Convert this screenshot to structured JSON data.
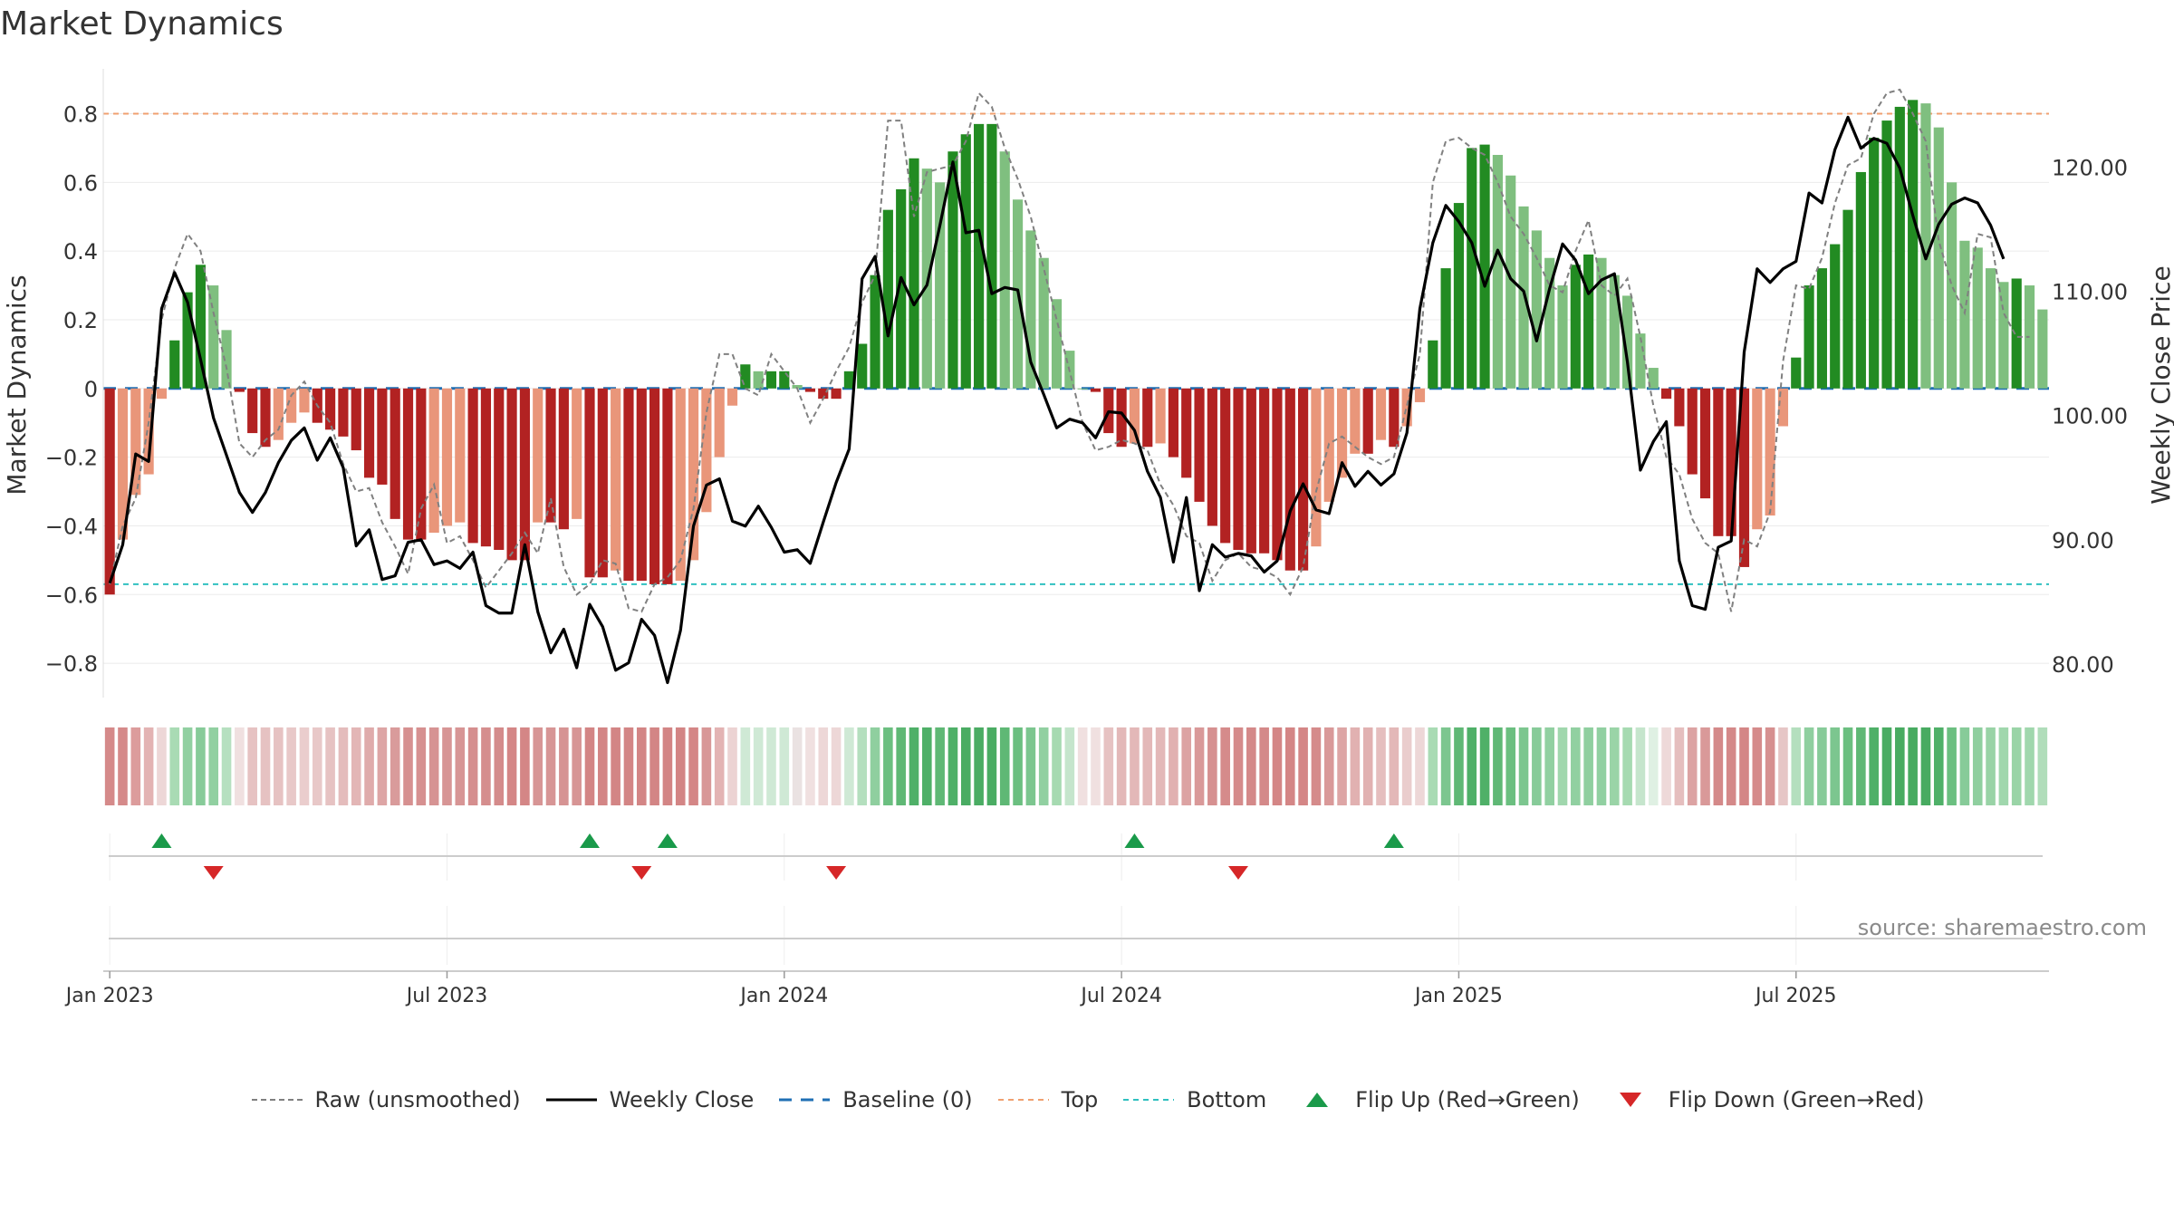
{
  "title": "Market Dynamics",
  "source": "source: sharemaestro.com",
  "colors": {
    "red_strong": "#b22222",
    "red_light": "#e9967a",
    "green_strong": "#228b22",
    "green_light": "#7fbf7f",
    "close_line": "#000000",
    "raw_line": "#808080",
    "baseline": "#1f6fb4",
    "top_line": "#f0a070",
    "bottom_line": "#30c0c0",
    "flip_up": "#1a9a4a",
    "flip_down": "#d62728"
  },
  "legend": [
    {
      "id": "raw",
      "label": "Raw (unsmoothed)"
    },
    {
      "id": "close",
      "label": "Weekly Close"
    },
    {
      "id": "baseline",
      "label": "Baseline (0)"
    },
    {
      "id": "top",
      "label": "Top"
    },
    {
      "id": "bottom",
      "label": "Bottom"
    },
    {
      "id": "flipup",
      "label": "Flip Up (Red→Green)"
    },
    {
      "id": "flipdown",
      "label": "Flip Down (Green→Red)"
    }
  ],
  "chart_data": {
    "type": "bar",
    "title": "Market Dynamics",
    "ylabel": "Market Dynamics",
    "y2label": "Weekly Close Price",
    "ylim": [
      -0.9,
      0.92
    ],
    "y2lim": [
      77.3,
      127.6
    ],
    "yticks": [
      {
        "v": 0.8,
        "label": "0.8"
      },
      {
        "v": 0.6,
        "label": "0.6"
      },
      {
        "v": 0.4,
        "label": "0.4"
      },
      {
        "v": 0.2,
        "label": "0.2"
      },
      {
        "v": 0,
        "label": "0"
      },
      {
        "v": -0.2,
        "label": "−0.2"
      },
      {
        "v": -0.4,
        "label": "−0.4"
      },
      {
        "v": -0.6,
        "label": "−0.6"
      },
      {
        "v": -0.8,
        "label": "−0.8"
      }
    ],
    "y2ticks": [
      {
        "v": 120,
        "label": "120.00"
      },
      {
        "v": 110,
        "label": "110.00"
      },
      {
        "v": 100,
        "label": "100.00"
      },
      {
        "v": 90,
        "label": "90.00"
      },
      {
        "v": 80,
        "label": "80.00"
      }
    ],
    "xticks": [
      {
        "week": 1,
        "label": "Jan 2023"
      },
      {
        "week": 27,
        "label": "Jul 2023"
      },
      {
        "week": 53,
        "label": "Jan 2024"
      },
      {
        "week": 79,
        "label": "Jul 2024"
      },
      {
        "week": 105,
        "label": "Jan 2025"
      },
      {
        "week": 131,
        "label": "Jul 2025"
      }
    ],
    "top": 0.8,
    "bottom": -0.57,
    "baseline": 0,
    "grid": true,
    "legend_position": "bottom",
    "bars": [
      -0.6,
      -0.44,
      -0.31,
      -0.25,
      -0.03,
      0.14,
      0.28,
      0.36,
      0.3,
      0.17,
      -0.01,
      -0.13,
      -0.17,
      -0.15,
      -0.1,
      -0.07,
      -0.1,
      -0.12,
      -0.14,
      -0.18,
      -0.26,
      -0.28,
      -0.38,
      -0.44,
      -0.44,
      -0.42,
      -0.4,
      -0.39,
      -0.45,
      -0.46,
      -0.47,
      -0.5,
      -0.5,
      -0.39,
      -0.39,
      -0.41,
      -0.38,
      -0.55,
      -0.55,
      -0.53,
      -0.56,
      -0.56,
      -0.57,
      -0.57,
      -0.56,
      -0.5,
      -0.36,
      -0.2,
      -0.05,
      0.07,
      0.05,
      0.05,
      0.05,
      0.01,
      -0.01,
      -0.03,
      -0.03,
      0.05,
      0.13,
      0.33,
      0.52,
      0.58,
      0.67,
      0.64,
      0.6,
      0.69,
      0.74,
      0.77,
      0.77,
      0.69,
      0.55,
      0.46,
      0.38,
      0.26,
      0.11,
      0.0,
      -0.01,
      -0.13,
      -0.17,
      -0.16,
      -0.17,
      -0.16,
      -0.2,
      -0.26,
      -0.33,
      -0.4,
      -0.45,
      -0.47,
      -0.48,
      -0.48,
      -0.5,
      -0.53,
      -0.53,
      -0.46,
      -0.33,
      -0.26,
      -0.19,
      -0.19,
      -0.15,
      -0.17,
      -0.11,
      -0.04,
      0.14,
      0.35,
      0.54,
      0.7,
      0.71,
      0.68,
      0.62,
      0.53,
      0.46,
      0.38,
      0.3,
      0.36,
      0.39,
      0.38,
      0.33,
      0.27,
      0.16,
      0.06,
      -0.03,
      -0.11,
      -0.25,
      -0.32,
      -0.43,
      -0.43,
      -0.52,
      -0.41,
      -0.37,
      -0.11,
      0.09,
      0.3,
      0.35,
      0.42,
      0.52,
      0.63,
      0.73,
      0.78,
      0.82,
      0.84,
      0.83,
      0.76,
      0.6,
      0.43,
      0.41,
      0.35,
      0.31,
      0.32,
      0.3,
      0.23
    ],
    "close": [
      86.5,
      89.6,
      96.9,
      96.3,
      108.6,
      111.5,
      109.1,
      104.5,
      99.8,
      96.8,
      93.8,
      92.2,
      93.8,
      96.2,
      98.0,
      99.0,
      96.4,
      98.2,
      95.8,
      89.5,
      90.8,
      86.8,
      87.1,
      89.8,
      90.0,
      88.0,
      88.3,
      87.7,
      89.0,
      84.7,
      84.1,
      84.1,
      89.6,
      84.2,
      80.9,
      82.8,
      79.7,
      84.8,
      83.0,
      79.5,
      80.1,
      83.6,
      82.3,
      78.5,
      82.7,
      91.1,
      94.4,
      94.9,
      91.5,
      91.1,
      92.7,
      91.0,
      89.0,
      89.2,
      88.1,
      91.4,
      94.6,
      97.3,
      111.0,
      112.8,
      106.4,
      111.1,
      108.9,
      110.5,
      115.3,
      120.4,
      114.7,
      114.9,
      109.8,
      110.3,
      110.1,
      104.3,
      101.7,
      99.0,
      99.7,
      99.4,
      98.2,
      100.3,
      100.2,
      98.8,
      95.5,
      93.4,
      88.2,
      93.4,
      85.9,
      89.6,
      88.6,
      88.9,
      88.7,
      87.4,
      88.3,
      92.3,
      94.5,
      92.4,
      92.1,
      96.2,
      94.3,
      95.5,
      94.4,
      95.3,
      98.6,
      108.6,
      113.9,
      116.9,
      115.6,
      113.9,
      110.4,
      113.3,
      111.0,
      110.0,
      106.0,
      110.2,
      113.8,
      112.5,
      109.8,
      110.9,
      111.4,
      104.3,
      95.6,
      97.9,
      99.5,
      88.3,
      84.7,
      84.4,
      89.4,
      89.9,
      105.1,
      111.8,
      110.7,
      111.8,
      112.4,
      117.9,
      117.1,
      121.4,
      124.0,
      121.5,
      122.3,
      121.9,
      119.9,
      116.1,
      112.6,
      115.4,
      117.0,
      117.5,
      117.1,
      115.3,
      112.6
    ],
    "raw": [
      -0.57,
      -0.4,
      -0.32,
      -0.1,
      0.2,
      0.35,
      0.45,
      0.4,
      0.22,
      0.06,
      -0.16,
      -0.2,
      -0.15,
      -0.12,
      -0.02,
      0.02,
      -0.05,
      -0.1,
      -0.22,
      -0.3,
      -0.29,
      -0.39,
      -0.46,
      -0.54,
      -0.35,
      -0.28,
      -0.45,
      -0.43,
      -0.5,
      -0.58,
      -0.53,
      -0.48,
      -0.42,
      -0.48,
      -0.32,
      -0.52,
      -0.6,
      -0.57,
      -0.5,
      -0.51,
      -0.64,
      -0.65,
      -0.57,
      -0.55,
      -0.5,
      -0.35,
      -0.07,
      0.1,
      0.1,
      0.0,
      -0.02,
      0.1,
      0.05,
      0.0,
      -0.1,
      -0.03,
      0.05,
      0.12,
      0.25,
      0.33,
      0.78,
      0.78,
      0.5,
      0.63,
      0.64,
      0.65,
      0.72,
      0.86,
      0.82,
      0.7,
      0.61,
      0.5,
      0.35,
      0.2,
      0.05,
      -0.1,
      -0.18,
      -0.17,
      -0.15,
      -0.16,
      -0.18,
      -0.28,
      -0.34,
      -0.43,
      -0.45,
      -0.56,
      -0.5,
      -0.48,
      -0.52,
      -0.53,
      -0.55,
      -0.6,
      -0.52,
      -0.3,
      -0.16,
      -0.14,
      -0.17,
      -0.2,
      -0.22,
      -0.2,
      -0.05,
      0.1,
      0.6,
      0.72,
      0.73,
      0.7,
      0.68,
      0.6,
      0.5,
      0.45,
      0.38,
      0.3,
      0.28,
      0.4,
      0.49,
      0.3,
      0.27,
      0.32,
      0.15,
      -0.05,
      -0.2,
      -0.25,
      -0.38,
      -0.45,
      -0.48,
      -0.65,
      -0.44,
      -0.46,
      -0.36,
      0.08,
      0.3,
      0.29,
      0.38,
      0.54,
      0.65,
      0.67,
      0.8,
      0.86,
      0.87,
      0.8,
      0.72,
      0.43,
      0.3,
      0.22,
      0.45,
      0.44,
      0.22,
      0.15,
      0.15
    ],
    "strip_rgba": [
      "#d58a8a",
      "#d58a8a",
      "#dc9c9c",
      "#e3b3b3",
      "#edd7d7",
      "#a9dbb4",
      "#91d0a1",
      "#87cb99",
      "#91d0a1",
      "#b6e0c0",
      "#f0e0e0",
      "#e6c2c2",
      "#e6c2c2",
      "#e6c2c2",
      "#e8c8c8",
      "#eacdcd",
      "#e8c8c8",
      "#e6c2c2",
      "#e4bcbc",
      "#e3b6b6",
      "#dfabab",
      "#dda5a5",
      "#d99b9b",
      "#d69090",
      "#d69090",
      "#d69393",
      "#d79595",
      "#d79595",
      "#d58e8e",
      "#d58e8e",
      "#d48b8b",
      "#d48686",
      "#d48686",
      "#d79595",
      "#d79595",
      "#d69393",
      "#d79595",
      "#d38585",
      "#d38585",
      "#d38585",
      "#d38585",
      "#d38585",
      "#d38585",
      "#d38585",
      "#d38585",
      "#d48686",
      "#d89797",
      "#e3b3b3",
      "#ecd3d3",
      "#cfe9d5",
      "#cfe9d5",
      "#cfe9d5",
      "#cfe9d5",
      "#eae2e2",
      "#f0e0e0",
      "#edd7d7",
      "#edd7d7",
      "#cfe9d5",
      "#b4dfbe",
      "#8fcf9f",
      "#6bbf80",
      "#5fb875",
      "#4fb068",
      "#4fb068",
      "#5fb875",
      "#4fb068",
      "#4aac63",
      "#4aac63",
      "#4aac63",
      "#5fb875",
      "#6bbf80",
      "#7cc68f",
      "#91d0a1",
      "#a6daB1",
      "#c5e5cc",
      "#f0e0e0",
      "#f0e0e0",
      "#e6c2c2",
      "#e3b8b8",
      "#e3b8b8",
      "#e3b8b8",
      "#e3b8b8",
      "#e1b1b1",
      "#dca3a3",
      "#d99999",
      "#d69090",
      "#d58b8b",
      "#d58b8b",
      "#d48989",
      "#d48989",
      "#d48686",
      "#d48686",
      "#d48686",
      "#d58b8b",
      "#d99999",
      "#dda5a5",
      "#e1b1b1",
      "#e1b1b1",
      "#e5bebe",
      "#e3b8b8",
      "#eacdcd",
      "#edd7d7",
      "#a9dbb4",
      "#7cc68f",
      "#5fb875",
      "#4fb068",
      "#4fb068",
      "#5fb875",
      "#6bbf80",
      "#7cc68f",
      "#87cb99",
      "#91d0a1",
      "#a0d7ad",
      "#91d0a1",
      "#8fcf9f",
      "#91d0a1",
      "#9ad4a7",
      "#a6dab1",
      "#c5e5cc",
      "#dff0e3",
      "#eed9d9",
      "#e5bebe",
      "#dca3a3",
      "#d99999",
      "#d48989",
      "#d48989",
      "#d48686",
      "#d58b8b",
      "#d69090",
      "#e6c6c6",
      "#b4dfbe",
      "#8fcf9f",
      "#87cb99",
      "#7cc68f",
      "#6bbf80",
      "#5fb875",
      "#4fb068",
      "#4aac63",
      "#48ab61",
      "#48ab61",
      "#48ab61",
      "#4fb068",
      "#6bbf80",
      "#87cb99",
      "#8fcf9f",
      "#99d3a6",
      "#a0d7ad",
      "#9ad4a7",
      "#a0d7ad",
      "#b0ddba"
    ],
    "flip_up_weeks": [
      4,
      37,
      43,
      79,
      99
    ],
    "flip_down_weeks": [
      8,
      41,
      56,
      87
    ]
  }
}
